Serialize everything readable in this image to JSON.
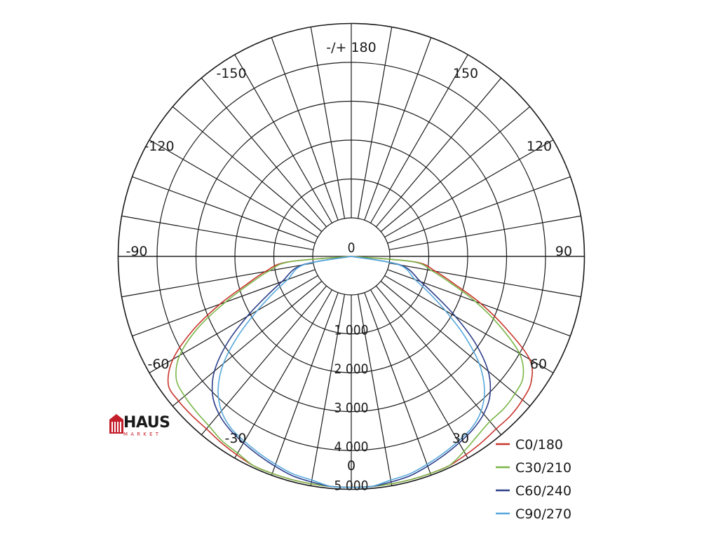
{
  "chart_data": {
    "type": "polar",
    "angle_labels": [
      {
        "angle": 180,
        "text": "-/+ 180"
      },
      {
        "angle": -150,
        "text": "-150"
      },
      {
        "angle": 150,
        "text": "150"
      },
      {
        "angle": -120,
        "text": "-120"
      },
      {
        "angle": 120,
        "text": "120"
      },
      {
        "angle": -90,
        "text": "-90"
      },
      {
        "angle": 90,
        "text": "90"
      },
      {
        "angle": -60,
        "text": "-60"
      },
      {
        "angle": 60,
        "text": "60"
      },
      {
        "angle": -30,
        "text": "-30"
      },
      {
        "angle": 30,
        "text": "30"
      },
      {
        "angle": 0,
        "text": "0"
      }
    ],
    "radial_ticks": [
      {
        "value": 0,
        "text": "0"
      },
      {
        "value": 1000,
        "text": "1 000"
      },
      {
        "value": 2000,
        "text": "2 000"
      },
      {
        "value": 3000,
        "text": "3 000"
      },
      {
        "value": 4000,
        "text": "4 000"
      },
      {
        "value": 5000,
        "text": "5 000"
      }
    ],
    "r_max": 5000,
    "angle_step_deg": 10,
    "series": [
      {
        "name": "C0/180",
        "color": "#c8342c",
        "angles": [
          -90,
          -85,
          -80,
          -75,
          -70,
          -65,
          -60,
          -55,
          -50,
          -45,
          -40,
          -35,
          -30,
          -25,
          -20,
          -15,
          -10,
          -5,
          0,
          5,
          10,
          15,
          20,
          25,
          30,
          35,
          40,
          45,
          50,
          55,
          60,
          65,
          70,
          75,
          80,
          85,
          90
        ],
        "values": [
          0,
          650,
          1250,
          1800,
          2600,
          3500,
          4300,
          4750,
          4800,
          4800,
          4800,
          4850,
          4900,
          4950,
          4950,
          4950,
          4950,
          4950,
          4950,
          4950,
          4950,
          4950,
          4950,
          4950,
          4900,
          4850,
          4800,
          4800,
          4750,
          4650,
          4300,
          3400,
          2550,
          1750,
          1200,
          650,
          0
        ]
      },
      {
        "name": "C30/210",
        "color": "#7ab648",
        "angles": [
          -90,
          -85,
          -80,
          -75,
          -70,
          -65,
          -60,
          -55,
          -50,
          -45,
          -40,
          -35,
          -30,
          -25,
          -20,
          -15,
          -10,
          -5,
          0,
          5,
          10,
          15,
          20,
          25,
          30,
          35,
          40,
          45,
          50,
          55,
          60,
          65,
          70,
          75,
          80,
          85,
          90
        ],
        "values": [
          0,
          600,
          1150,
          1700,
          2450,
          3350,
          4100,
          4500,
          4600,
          4650,
          4700,
          4800,
          4850,
          4950,
          4950,
          4950,
          4950,
          4950,
          4950,
          4950,
          4950,
          4950,
          4950,
          4950,
          4800,
          4650,
          4550,
          4550,
          4500,
          4400,
          4000,
          3200,
          2400,
          1650,
          1100,
          600,
          0
        ]
      },
      {
        "name": "C60/240",
        "color": "#2c3e8a",
        "angles": [
          -90,
          -80,
          -70,
          -65,
          -60,
          -55,
          -50,
          -45,
          -40,
          -35,
          -30,
          -25,
          -20,
          -15,
          -10,
          -5,
          0,
          5,
          10,
          15,
          20,
          25,
          30,
          35,
          40,
          45,
          50,
          55,
          60,
          65,
          70,
          80,
          90
        ],
        "values": [
          0,
          300,
          900,
          1400,
          2100,
          2900,
          3600,
          4050,
          4300,
          4450,
          4550,
          4650,
          4750,
          4850,
          4900,
          4950,
          4950,
          4950,
          4900,
          4850,
          4750,
          4650,
          4550,
          4450,
          4300,
          4050,
          3600,
          2900,
          2100,
          1400,
          900,
          300,
          0
        ]
      },
      {
        "name": "C90/270",
        "color": "#56a8dc",
        "angles": [
          -90,
          -80,
          -70,
          -65,
          -60,
          -55,
          -50,
          -45,
          -40,
          -35,
          -30,
          -25,
          -20,
          -15,
          -10,
          -5,
          0,
          5,
          10,
          15,
          20,
          25,
          30,
          35,
          40,
          45,
          50,
          55,
          60,
          65,
          70,
          80,
          90
        ],
        "values": [
          0,
          250,
          750,
          1200,
          1800,
          2550,
          3300,
          3850,
          4200,
          4400,
          4500,
          4600,
          4700,
          4800,
          4850,
          4950,
          4950,
          4950,
          4850,
          4800,
          4700,
          4600,
          4500,
          4400,
          4200,
          3850,
          3300,
          2550,
          1800,
          1200,
          750,
          250,
          0
        ]
      }
    ],
    "legend_position": "bottom-right",
    "grid": true
  },
  "logo": {
    "title": "HAUS",
    "subtitle": "MARKET",
    "color": "#c41e2a"
  }
}
